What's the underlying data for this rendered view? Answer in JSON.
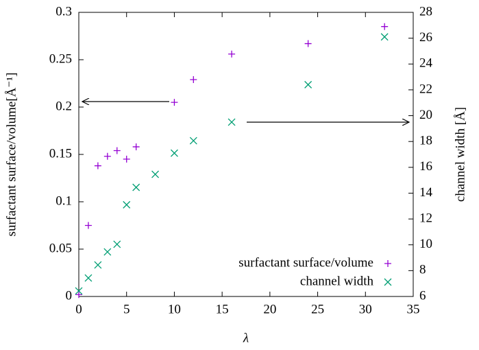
{
  "chart_data": {
    "type": "scatter",
    "xlabel": "λ",
    "ylabel": "surfactant surface/volume[Å⁻¹]",
    "y2label": "channel width [Å]",
    "xlim": [
      0,
      35
    ],
    "xticks": [
      0,
      5,
      10,
      15,
      20,
      25,
      30,
      35
    ],
    "ylim": [
      0,
      0.3
    ],
    "yticks": [
      0,
      0.05,
      0.1,
      0.15,
      0.2,
      0.25,
      0.3
    ],
    "y2lim": [
      6,
      28
    ],
    "y2ticks": [
      6,
      8,
      10,
      12,
      14,
      16,
      18,
      20,
      22,
      24,
      26,
      28
    ],
    "legend": "lower right",
    "series": [
      {
        "name": "surfactant surface/volume",
        "color": "#9400d3",
        "marker": "plus",
        "x": [
          0,
          1,
          2,
          3,
          4,
          5,
          6,
          10,
          12,
          16,
          24,
          32
        ],
        "values": [
          0.002,
          0.075,
          0.138,
          0.148,
          0.154,
          0.145,
          0.158,
          0.205,
          0.229,
          0.256,
          0.267,
          0.285
        ]
      },
      {
        "name": "channel width",
        "color": "#009e73",
        "marker": "cross",
        "axis": "y2",
        "x": [
          0,
          1,
          2,
          3,
          4,
          5,
          6,
          8,
          10,
          12,
          16,
          24,
          32
        ],
        "values": [
          6.43,
          7.43,
          8.44,
          9.45,
          10.04,
          13.1,
          14.45,
          15.46,
          17.1,
          18.06,
          19.5,
          22.4,
          26.1
        ]
      }
    ]
  }
}
